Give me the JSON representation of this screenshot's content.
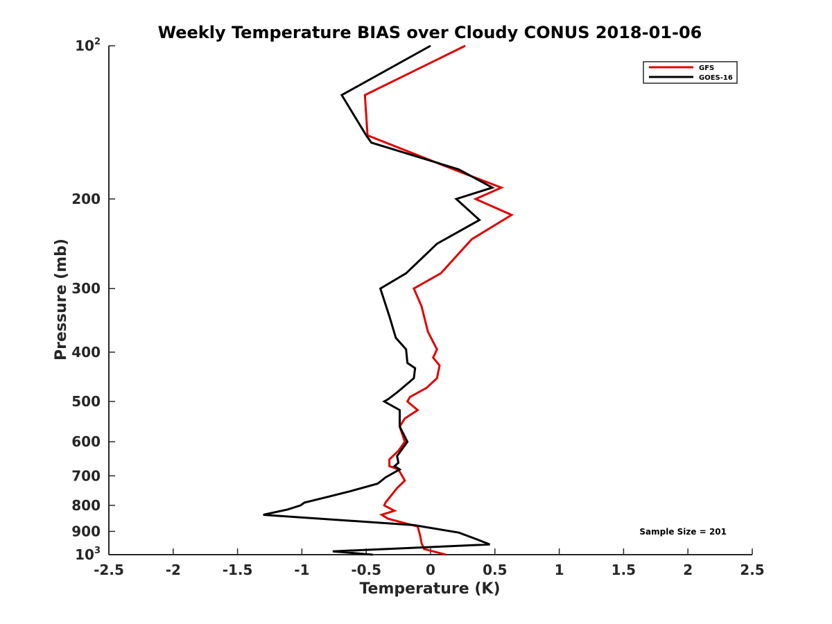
{
  "chart_data": {
    "type": "line",
    "title": "Weekly Temperature BIAS over Cloudy CONUS 2018-01-06",
    "xlabel": "Temperature (K)",
    "ylabel": "Pressure (mb)",
    "xlim": [
      -2.5,
      2.5
    ],
    "ylim": [
      100,
      1000
    ],
    "yscale": "log",
    "y_reversed": true,
    "grid": false,
    "legend_position": "top-right",
    "x_ticks": [
      -2.5,
      -2,
      -1.5,
      -1,
      -0.5,
      0,
      0.5,
      1,
      1.5,
      2,
      2.5
    ],
    "x_tick_labels": [
      "-2.5",
      "-2",
      "-1.5",
      "-1",
      "-0.5",
      "0",
      "0.5",
      "1",
      "1.5",
      "2",
      "2.5"
    ],
    "y_ticks": [
      {
        "value": 100,
        "base": "10",
        "exp": "2"
      },
      {
        "value": 200,
        "label": "200"
      },
      {
        "value": 300,
        "label": "300"
      },
      {
        "value": 400,
        "label": "400"
      },
      {
        "value": 500,
        "label": "500"
      },
      {
        "value": 600,
        "label": "600"
      },
      {
        "value": 700,
        "label": "700"
      },
      {
        "value": 800,
        "label": "800"
      },
      {
        "value": 900,
        "label": "900"
      },
      {
        "value": 1000,
        "base": "10",
        "exp": "3"
      }
    ],
    "series": [
      {
        "name": "GFS",
        "color": "#e00000",
        "points": [
          [
            0.27,
            100
          ],
          [
            -0.51,
            125
          ],
          [
            -0.49,
            150
          ],
          [
            0.18,
            175
          ],
          [
            0.55,
            190
          ],
          [
            0.35,
            200
          ],
          [
            0.63,
            215
          ],
          [
            0.32,
            240
          ],
          [
            0.08,
            280
          ],
          [
            -0.13,
            300
          ],
          [
            -0.07,
            325
          ],
          [
            -0.02,
            365
          ],
          [
            0.05,
            395
          ],
          [
            0.02,
            410
          ],
          [
            0.07,
            425
          ],
          [
            0.05,
            450
          ],
          [
            -0.03,
            470
          ],
          [
            -0.16,
            490
          ],
          [
            -0.18,
            500
          ],
          [
            -0.1,
            520
          ],
          [
            -0.2,
            540
          ],
          [
            -0.24,
            560
          ],
          [
            -0.2,
            600
          ],
          [
            -0.25,
            625
          ],
          [
            -0.32,
            650
          ],
          [
            -0.32,
            670
          ],
          [
            -0.25,
            680
          ],
          [
            -0.2,
            715
          ],
          [
            -0.26,
            740
          ],
          [
            -0.35,
            790
          ],
          [
            -0.36,
            800
          ],
          [
            -0.28,
            820
          ],
          [
            -0.38,
            835
          ],
          [
            -0.33,
            850
          ],
          [
            -0.1,
            880
          ],
          [
            -0.08,
            920
          ],
          [
            -0.07,
            950
          ],
          [
            -0.05,
            975
          ],
          [
            0.12,
            1000
          ]
        ]
      },
      {
        "name": "GOES-16",
        "color": "#000000",
        "points": [
          [
            0.0,
            100
          ],
          [
            -0.69,
            125
          ],
          [
            -0.5,
            150
          ],
          [
            -0.46,
            155
          ],
          [
            0.22,
            175
          ],
          [
            0.48,
            190
          ],
          [
            0.2,
            200
          ],
          [
            0.38,
            220
          ],
          [
            0.05,
            245
          ],
          [
            -0.19,
            280
          ],
          [
            -0.39,
            300
          ],
          [
            -0.32,
            340
          ],
          [
            -0.27,
            375
          ],
          [
            -0.19,
            395
          ],
          [
            -0.18,
            420
          ],
          [
            -0.12,
            430
          ],
          [
            -0.13,
            450
          ],
          [
            -0.26,
            480
          ],
          [
            -0.33,
            495
          ],
          [
            -0.36,
            500
          ],
          [
            -0.24,
            520
          ],
          [
            -0.24,
            560
          ],
          [
            -0.18,
            600
          ],
          [
            -0.26,
            640
          ],
          [
            -0.25,
            660
          ],
          [
            -0.28,
            670
          ],
          [
            -0.24,
            680
          ],
          [
            -0.35,
            705
          ],
          [
            -0.41,
            725
          ],
          [
            -0.62,
            750
          ],
          [
            -0.8,
            770
          ],
          [
            -0.98,
            790
          ],
          [
            -1.01,
            800
          ],
          [
            -1.11,
            815
          ],
          [
            -1.3,
            835
          ],
          [
            -0.13,
            875
          ],
          [
            0.22,
            905
          ],
          [
            0.37,
            935
          ],
          [
            0.46,
            955
          ],
          [
            -0.76,
            985
          ],
          [
            -0.45,
            1000
          ]
        ]
      }
    ],
    "annotation": "Sample Size = 201"
  }
}
